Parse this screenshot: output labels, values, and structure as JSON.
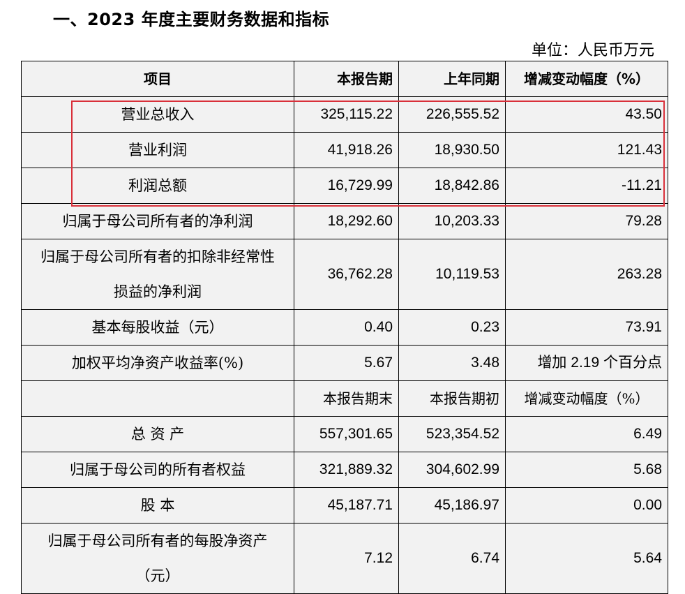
{
  "title": "一、2023 年度主要财务数据和指标",
  "unit": "单位：人民币万元",
  "header": {
    "item": "项目",
    "current": "本报告期",
    "prior": "上年同期",
    "change": "增减变动幅度（%）"
  },
  "rows_period": [
    {
      "name": "营业总收入",
      "current": "325,115.22",
      "prior": "226,555.52",
      "change": "43.50"
    },
    {
      "name": "营业利润",
      "current": "41,918.26",
      "prior": "18,930.50",
      "change": "121.43"
    },
    {
      "name": "利润总额",
      "current": "16,729.99",
      "prior": "18,842.86",
      "change": "-11.21"
    },
    {
      "name": "归属于母公司所有者的净利润",
      "current": "18,292.60",
      "prior": "10,203.33",
      "change": "79.28"
    },
    {
      "name_line1": "归属于母公司所有者的扣除非经常性",
      "name_line2": "损益的净利润",
      "current": "36,762.28",
      "prior": "10,119.53",
      "change": "263.28"
    },
    {
      "name": "基本每股收益（元）",
      "current": "0.40",
      "prior": "0.23",
      "change": "73.91"
    },
    {
      "name": "加权平均净资产收益率(%)",
      "current": "5.67",
      "prior": "3.48",
      "change_prefix": "增加",
      "change_value": "2.19",
      "change_suffix": "个百分点"
    }
  ],
  "subheader": {
    "end": "本报告期末",
    "begin": "本报告期初",
    "change": "增减变动幅度（%）"
  },
  "rows_balance": [
    {
      "name": "总 资 产",
      "end": "557,301.65",
      "begin": "523,354.52",
      "change": "6.49"
    },
    {
      "name": "归属于母公司的所有者权益",
      "end": "321,889.32",
      "begin": "304,602.99",
      "change": "5.68"
    },
    {
      "name": "股 本",
      "end": "45,187.71",
      "begin": "45,186.97",
      "change": "0.00"
    },
    {
      "name_line1": "归属于母公司所有者的每股净资产",
      "name_line2": "（元）",
      "end": "7.12",
      "begin": "6.74",
      "change": "5.64"
    }
  ]
}
